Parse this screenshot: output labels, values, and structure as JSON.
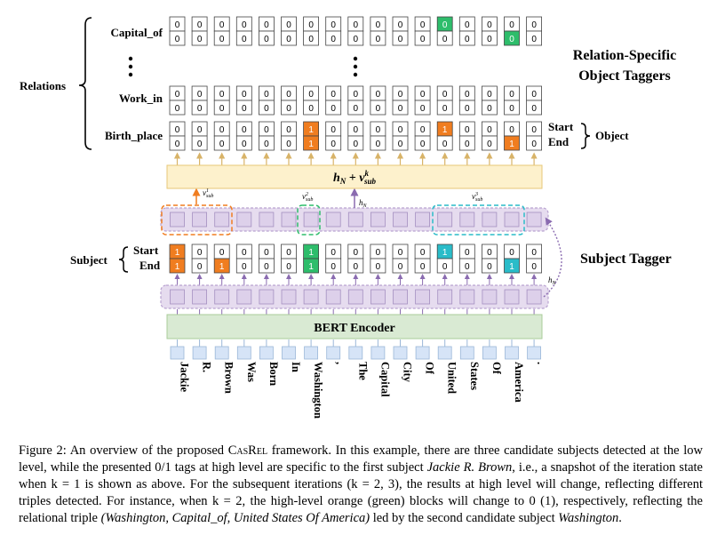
{
  "figure": {
    "tokens": [
      "Jackie",
      "R.",
      "Brown",
      "Was",
      "Born",
      "In",
      "Washington",
      ",",
      "The",
      "Capital",
      "City",
      "Of",
      "United",
      "States",
      "Of",
      "America",
      "."
    ],
    "relations_label": "Relations",
    "relation_rows": [
      {
        "label": "Capital_of",
        "start": [
          0,
          0,
          0,
          0,
          0,
          0,
          0,
          0,
          0,
          0,
          0,
          0,
          0,
          0,
          0,
          0,
          0
        ],
        "end": [
          0,
          0,
          0,
          0,
          0,
          0,
          0,
          0,
          0,
          0,
          0,
          0,
          0,
          0,
          0,
          0,
          0
        ],
        "green_start": [
          12
        ],
        "green_end": [
          15
        ],
        "orange_start": [],
        "orange_end": []
      },
      {
        "label": "Work_in",
        "start": [
          0,
          0,
          0,
          0,
          0,
          0,
          0,
          0,
          0,
          0,
          0,
          0,
          0,
          0,
          0,
          0,
          0
        ],
        "end": [
          0,
          0,
          0,
          0,
          0,
          0,
          0,
          0,
          0,
          0,
          0,
          0,
          0,
          0,
          0,
          0,
          0
        ],
        "green_start": [],
        "green_end": [],
        "orange_start": [],
        "orange_end": []
      },
      {
        "label": "Birth_place",
        "start": [
          0,
          0,
          0,
          0,
          0,
          0,
          1,
          0,
          0,
          0,
          0,
          0,
          1,
          0,
          0,
          0,
          0
        ],
        "end": [
          0,
          0,
          0,
          0,
          0,
          0,
          1,
          0,
          0,
          0,
          0,
          0,
          0,
          0,
          0,
          1,
          0
        ],
        "green_start": [],
        "green_end": [],
        "orange_start": [
          6,
          12
        ],
        "orange_end": [
          6,
          15
        ]
      }
    ],
    "object_start_label": "Start",
    "object_end_label": "End",
    "object_label": "Object",
    "title_line1": "Relation-Specific",
    "title_line2": "Object Taggers",
    "fusion_label": "h_N + v^k_sub",
    "hn_label": "h_N",
    "vsub1": "v^1_sub",
    "vsub2": "v^2_sub",
    "vsub3": "v^3_sub",
    "subject_label": "Subject",
    "subject_start_label": "Start",
    "subject_end_label": "End",
    "subject_start": [
      1,
      0,
      0,
      0,
      0,
      0,
      1,
      0,
      0,
      0,
      0,
      0,
      1,
      0,
      0,
      0,
      0
    ],
    "subject_end": [
      1,
      0,
      1,
      0,
      0,
      0,
      1,
      0,
      0,
      0,
      0,
      0,
      0,
      0,
      0,
      1,
      0
    ],
    "subject_orange": [
      0,
      2
    ],
    "subject_green": [
      6
    ],
    "subject_teal": [
      12,
      15
    ],
    "subject_tagger_label": "Subject Tagger",
    "bert_label": "BERT Encoder",
    "colors": {
      "orange": "#f07d20",
      "green": "#2ebd6b",
      "teal": "#2abcc9",
      "purple_fill": "#e6dcef",
      "purple_stroke": "#b9a3d0",
      "bert_fill": "#d9ead3",
      "fusion_fill": "#fdf1cc",
      "token_fill": "#d6e4f7",
      "arrow": "#d8b368",
      "purple_arrow": "#8a6bb0"
    }
  },
  "caption": {
    "p1": "Figure 2: An overview of the proposed ",
    "casrel": "CasRel",
    "p2": " framework. In this example, there are three candidate subjects detected at the low level, while the presented 0/1 tags at high level are specific to the first subject ",
    "subject1": "Jackie R. Brown",
    "p3": ", i.e., a snapshot of the iteration state when k = 1 is shown as above. For the subsequent iterations (k = 2, 3), the results at high level will change, reflecting different triples detected. For instance, when k = 2, the high-level orange (green) blocks will change to 0 (1), respectively, reflecting the relational triple ",
    "triple": "(Washington, Capital_of, United States Of America)",
    "p4": " led by the second candidate subject ",
    "subject2": "Washington",
    "p5": "."
  }
}
